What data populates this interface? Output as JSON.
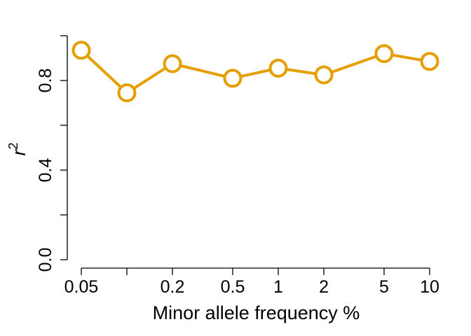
{
  "chart_data": {
    "type": "line",
    "xlabel": "Minor allele frequency %",
    "ylabel": "r",
    "ylabel_superscript": "2",
    "x_scale": "log",
    "xlim": [
      0.05,
      10
    ],
    "ylim": [
      0,
      1
    ],
    "x_ticks": [
      {
        "value": 0.05,
        "label": "0.05"
      },
      {
        "value": 0.1,
        "label": ""
      },
      {
        "value": 0.2,
        "label": "0.2"
      },
      {
        "value": 0.5,
        "label": "0.5"
      },
      {
        "value": 1,
        "label": "1"
      },
      {
        "value": 2,
        "label": "2"
      },
      {
        "value": 5,
        "label": "5"
      },
      {
        "value": 10,
        "label": "10"
      }
    ],
    "y_ticks": [
      {
        "value": 0.0,
        "label": "0.0"
      },
      {
        "value": 0.2,
        "label": ""
      },
      {
        "value": 0.4,
        "label": "0.4"
      },
      {
        "value": 0.6,
        "label": ""
      },
      {
        "value": 0.8,
        "label": "0.8"
      },
      {
        "value": 1.0,
        "label": ""
      }
    ],
    "grid": false,
    "color": "#E69F00",
    "series": [
      {
        "x": [
          0.05,
          0.1,
          0.2,
          0.5,
          1,
          2,
          5,
          10
        ],
        "values": [
          0.935,
          0.745,
          0.875,
          0.81,
          0.855,
          0.825,
          0.92,
          0.885
        ]
      }
    ]
  }
}
